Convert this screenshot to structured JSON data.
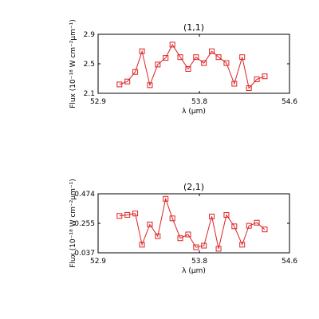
{
  "chart_data": [
    {
      "type": "line",
      "title": "(1,1)",
      "xlabel": "λ (μm)",
      "ylabel": "Flux (10⁻¹⁸ W cm⁻²μm⁻¹)",
      "xlim": [
        52.9,
        54.6
      ],
      "ylim": [
        2.1,
        2.9
      ],
      "xticks": [
        "52.9",
        "53.8",
        "54.6"
      ],
      "yticks": [
        "2.1",
        "2.5",
        "2.9"
      ],
      "x": [
        53.09,
        53.16,
        53.23,
        53.29,
        53.36,
        53.43,
        53.5,
        53.56,
        53.63,
        53.7,
        53.77,
        53.84,
        53.91,
        53.97,
        54.04,
        54.11,
        54.18,
        54.24,
        54.31,
        54.38
      ],
      "values": [
        2.22,
        2.26,
        2.39,
        2.67,
        2.21,
        2.49,
        2.58,
        2.76,
        2.59,
        2.43,
        2.59,
        2.51,
        2.67,
        2.59,
        2.51,
        2.23,
        2.59,
        2.17,
        2.29,
        2.33
      ],
      "grid": false
    },
    {
      "type": "line",
      "title": "(2,1)",
      "xlabel": "λ (μm)",
      "ylabel": "Flux (10⁻¹⁸ W cm⁻²μm⁻¹)",
      "xlim": [
        52.9,
        54.6
      ],
      "ylim": [
        0.037,
        0.474
      ],
      "xticks": [
        "52.9",
        "53.8",
        "54.6"
      ],
      "yticks": [
        "0.037",
        "0.255",
        "0.474"
      ],
      "x": [
        53.09,
        53.16,
        53.23,
        53.29,
        53.36,
        53.43,
        53.5,
        53.56,
        53.63,
        53.7,
        53.77,
        53.84,
        53.91,
        53.97,
        54.04,
        54.11,
        54.18,
        54.24,
        54.31,
        54.38
      ],
      "values": [
        0.31,
        0.318,
        0.328,
        0.097,
        0.247,
        0.16,
        0.437,
        0.292,
        0.145,
        0.173,
        0.078,
        0.09,
        0.306,
        0.067,
        0.317,
        0.233,
        0.097,
        0.237,
        0.26,
        0.21
      ],
      "grid": false
    }
  ]
}
